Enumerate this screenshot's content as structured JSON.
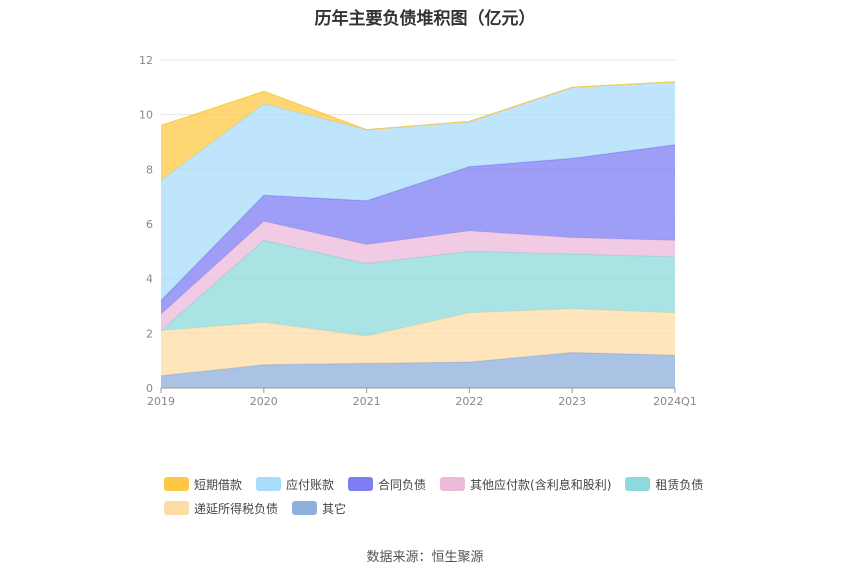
{
  "title": "历年主要负债堆积图（亿元）",
  "source": "数据来源：恒生聚源",
  "chart_data": {
    "type": "area",
    "stacked": true,
    "categories": [
      "2019",
      "2020",
      "2021",
      "2022",
      "2023",
      "2024Q1"
    ],
    "ylim": [
      0,
      12
    ],
    "yticks": [
      "0",
      "2",
      "4",
      "6",
      "8",
      "10",
      "12"
    ],
    "grid": true,
    "legend_position": "bottom",
    "series": [
      {
        "name": "其它",
        "color": "#8eaedb",
        "values": [
          0.45,
          0.85,
          0.9,
          0.95,
          1.3,
          1.2
        ]
      },
      {
        "name": "递延所得税负债",
        "color": "#fddca6",
        "values": [
          1.65,
          1.55,
          1.0,
          1.8,
          1.6,
          1.55
        ]
      },
      {
        "name": "租赁负债",
        "color": "#8cdada",
        "values": [
          0.0,
          3.0,
          2.65,
          2.25,
          2.0,
          2.05
        ]
      },
      {
        "name": "其他应付款(含利息和股利)",
        "color": "#ecbad9",
        "values": [
          0.6,
          0.7,
          0.7,
          0.75,
          0.6,
          0.6
        ]
      },
      {
        "name": "合同负债",
        "color": "#7d7ef4",
        "values": [
          0.5,
          0.95,
          1.6,
          2.35,
          2.9,
          3.5
        ]
      },
      {
        "name": "应付账款",
        "color": "#a8dcf9",
        "values": [
          4.4,
          3.35,
          2.6,
          1.65,
          2.6,
          2.3
        ]
      },
      {
        "name": "短期借款",
        "color": "#fdc843",
        "values": [
          2.0,
          0.45,
          0.0,
          0.0,
          0.0,
          0.0
        ]
      }
    ]
  },
  "legend": {
    "row1": [
      "短期借款",
      "应付账款",
      "合同负债",
      "其他应付款(含利息和股利)",
      "租赁负债"
    ],
    "row2": [
      "递延所得税负债",
      "其它"
    ],
    "colors": {
      "短期借款": "#fdc843",
      "应付账款": "#a8dcf9",
      "合同负债": "#7d7ef4",
      "其他应付款(含利息和股利)": "#ecbad9",
      "租赁负债": "#8cdada",
      "递延所得税负债": "#fddca6",
      "其它": "#8eaedb"
    }
  }
}
